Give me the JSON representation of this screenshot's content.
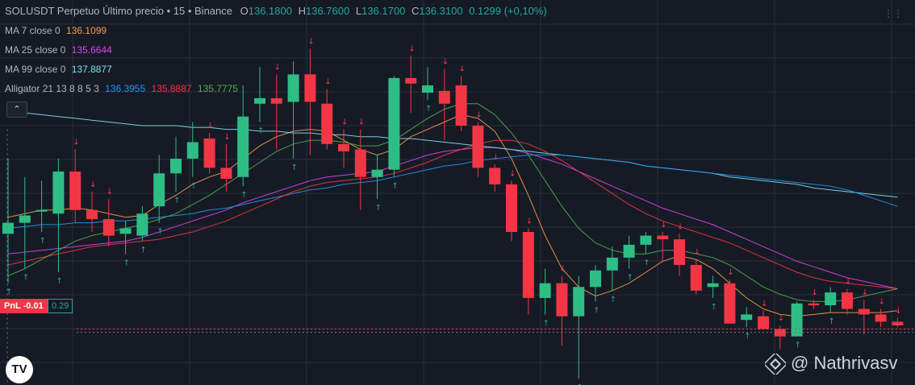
{
  "header": {
    "symbol": "SOLUSDT Perpetuo Último precio • 15 • Binance",
    "o_label": "O",
    "o_value": "136.1800",
    "h_label": "H",
    "h_value": "136.7600",
    "l_label": "L",
    "l_value": "136.1700",
    "c_label": "C",
    "c_value": "136.3100",
    "change": "0.1299 (+0,10%)"
  },
  "indicators": {
    "ma7": {
      "label": "MA 7 close 0",
      "value": "136.1099",
      "color": "#f0a04b"
    },
    "ma25": {
      "label": "MA 25 close 0",
      "value": "135.6644",
      "color": "#d946ef"
    },
    "ma99": {
      "label": "MA 99 close 0",
      "value": "137.8877",
      "color": "#7fe3f0"
    },
    "alligator": {
      "label": "Alligator 21 13 8 8 5 3",
      "jaw": "136.3955",
      "teeth": "135.8887",
      "lips": "135.7775",
      "jaw_color": "#2196f3",
      "teeth_color": "#f23645",
      "lips_color": "#4caf50"
    }
  },
  "pnl": {
    "label": "PnL -0.01",
    "value": "0.29"
  },
  "watermark": "@ Nathrivasv",
  "logo": "TV",
  "colors": {
    "up": "#26a69a",
    "up_body": "#2ebd85",
    "down": "#f23645",
    "background": "#161a25",
    "grid": "#2a2e39"
  },
  "chart_data": {
    "type": "candlestick",
    "y_axis_shown": false,
    "candles": [
      {
        "o": 135.99,
        "h": 136.4,
        "l": 135.72,
        "c": 136.05
      },
      {
        "o": 136.05,
        "h": 136.3,
        "l": 135.8,
        "c": 136.09
      },
      {
        "o": 136.12,
        "h": 136.28,
        "l": 136.0,
        "c": 136.12
      },
      {
        "o": 136.1,
        "h": 136.4,
        "l": 135.78,
        "c": 136.33
      },
      {
        "o": 136.33,
        "h": 136.45,
        "l": 136.05,
        "c": 136.12
      },
      {
        "o": 136.12,
        "h": 136.22,
        "l": 136.0,
        "c": 136.07
      },
      {
        "o": 136.07,
        "h": 136.18,
        "l": 135.92,
        "c": 135.98
      },
      {
        "o": 135.99,
        "h": 136.06,
        "l": 135.88,
        "c": 136.02
      },
      {
        "o": 135.98,
        "h": 136.14,
        "l": 135.95,
        "c": 136.1
      },
      {
        "o": 136.14,
        "h": 136.42,
        "l": 136.05,
        "c": 136.32
      },
      {
        "o": 136.32,
        "h": 136.52,
        "l": 136.22,
        "c": 136.4
      },
      {
        "o": 136.4,
        "h": 136.6,
        "l": 136.3,
        "c": 136.49
      },
      {
        "o": 136.51,
        "h": 136.54,
        "l": 136.32,
        "c": 136.35
      },
      {
        "o": 136.35,
        "h": 136.48,
        "l": 136.22,
        "c": 136.29
      },
      {
        "o": 136.3,
        "h": 136.8,
        "l": 136.25,
        "c": 136.63
      },
      {
        "o": 136.7,
        "h": 136.9,
        "l": 136.6,
        "c": 136.73
      },
      {
        "o": 136.73,
        "h": 136.86,
        "l": 136.45,
        "c": 136.7
      },
      {
        "o": 136.71,
        "h": 136.93,
        "l": 136.4,
        "c": 136.86
      },
      {
        "o": 136.86,
        "h": 137.0,
        "l": 136.42,
        "c": 136.71
      },
      {
        "o": 136.7,
        "h": 136.78,
        "l": 136.45,
        "c": 136.48
      },
      {
        "o": 136.48,
        "h": 136.56,
        "l": 136.35,
        "c": 136.44
      },
      {
        "o": 136.45,
        "h": 136.56,
        "l": 136.12,
        "c": 136.3
      },
      {
        "o": 136.3,
        "h": 136.42,
        "l": 136.18,
        "c": 136.34
      },
      {
        "o": 136.34,
        "h": 136.85,
        "l": 136.3,
        "c": 136.84
      },
      {
        "o": 136.84,
        "h": 136.96,
        "l": 136.65,
        "c": 136.81
      },
      {
        "o": 136.76,
        "h": 136.9,
        "l": 136.72,
        "c": 136.8
      },
      {
        "o": 136.77,
        "h": 136.89,
        "l": 136.5,
        "c": 136.7
      },
      {
        "o": 136.8,
        "h": 136.85,
        "l": 136.55,
        "c": 136.58
      },
      {
        "o": 136.58,
        "h": 136.6,
        "l": 136.3,
        "c": 136.35
      },
      {
        "o": 136.35,
        "h": 136.37,
        "l": 136.22,
        "c": 136.26
      },
      {
        "o": 136.26,
        "h": 136.28,
        "l": 135.95,
        "c": 136.0
      },
      {
        "o": 136.0,
        "h": 136.02,
        "l": 135.55,
        "c": 135.64
      },
      {
        "o": 135.64,
        "h": 135.8,
        "l": 135.55,
        "c": 135.72
      },
      {
        "o": 135.72,
        "h": 135.76,
        "l": 135.38,
        "c": 135.54
      },
      {
        "o": 135.54,
        "h": 135.76,
        "l": 135.2,
        "c": 135.7
      },
      {
        "o": 135.7,
        "h": 135.82,
        "l": 135.62,
        "c": 135.79
      },
      {
        "o": 135.79,
        "h": 135.92,
        "l": 135.68,
        "c": 135.86
      },
      {
        "o": 135.86,
        "h": 135.98,
        "l": 135.8,
        "c": 135.93
      },
      {
        "o": 135.93,
        "h": 136.0,
        "l": 135.88,
        "c": 135.98
      },
      {
        "o": 135.98,
        "h": 136.0,
        "l": 135.84,
        "c": 135.96
      },
      {
        "o": 135.96,
        "h": 135.99,
        "l": 135.76,
        "c": 135.82
      },
      {
        "o": 135.82,
        "h": 135.85,
        "l": 135.66,
        "c": 135.68
      },
      {
        "o": 135.7,
        "h": 135.76,
        "l": 135.64,
        "c": 135.72
      },
      {
        "o": 135.72,
        "h": 135.74,
        "l": 135.5,
        "c": 135.5
      },
      {
        "o": 135.52,
        "h": 135.59,
        "l": 135.48,
        "c": 135.55
      },
      {
        "o": 135.54,
        "h": 135.57,
        "l": 135.47,
        "c": 135.47
      },
      {
        "o": 135.47,
        "h": 135.49,
        "l": 135.36,
        "c": 135.43
      },
      {
        "o": 135.43,
        "h": 135.62,
        "l": 135.43,
        "c": 135.61
      },
      {
        "o": 135.61,
        "h": 135.63,
        "l": 135.58,
        "c": 135.6
      },
      {
        "o": 135.6,
        "h": 135.7,
        "l": 135.56,
        "c": 135.67
      },
      {
        "o": 135.67,
        "h": 135.69,
        "l": 135.55,
        "c": 135.58
      },
      {
        "o": 135.58,
        "h": 135.63,
        "l": 135.44,
        "c": 135.55
      },
      {
        "o": 135.55,
        "h": 135.58,
        "l": 135.48,
        "c": 135.51
      },
      {
        "o": 135.51,
        "h": 135.53,
        "l": 135.48,
        "c": 135.49
      }
    ],
    "series": [
      {
        "name": "MA 7 close 0",
        "values": [
          136.08,
          136.1,
          136.12,
          136.12,
          136.13,
          136.12,
          136.1,
          136.08,
          136.09,
          136.15,
          136.2,
          136.26,
          136.3,
          136.33,
          136.4,
          136.47,
          136.52,
          136.55,
          136.56,
          136.55,
          136.5,
          136.45,
          136.42,
          136.45,
          136.52,
          136.56,
          136.6,
          136.64,
          136.62,
          136.55,
          136.4,
          136.2,
          135.98,
          135.8,
          135.7,
          135.65,
          135.68,
          135.72,
          135.78,
          135.84,
          135.87,
          135.85,
          135.8,
          135.72,
          135.64,
          135.58,
          135.55,
          135.54,
          135.55,
          135.56,
          135.56,
          135.56,
          135.56,
          135.57
        ]
      },
      {
        "name": "MA 25 close 0",
        "values": [
          135.88,
          135.89,
          135.9,
          135.91,
          135.92,
          135.93,
          135.94,
          135.95,
          135.97,
          136.0,
          136.03,
          136.06,
          136.09,
          136.12,
          136.16,
          136.19,
          136.22,
          136.25,
          136.28,
          136.3,
          136.31,
          136.32,
          136.33,
          136.36,
          136.39,
          136.42,
          136.44,
          136.45,
          136.46,
          136.46,
          136.45,
          136.43,
          136.4,
          136.37,
          136.33,
          136.29,
          136.25,
          136.21,
          136.17,
          136.13,
          136.1,
          136.07,
          136.04,
          136.0,
          135.96,
          135.92,
          135.88,
          135.84,
          135.81,
          135.78,
          135.75,
          135.73,
          135.71,
          135.69
        ]
      },
      {
        "name": "MA 99 close 0",
        "values": [
          136.66,
          136.65,
          136.64,
          136.63,
          136.62,
          136.61,
          136.6,
          136.59,
          136.58,
          136.58,
          136.58,
          136.57,
          136.57,
          136.56,
          136.56,
          136.55,
          136.55,
          136.54,
          136.54,
          136.53,
          136.53,
          136.52,
          136.52,
          136.51,
          136.51,
          136.5,
          136.49,
          136.48,
          136.47,
          136.46,
          136.45,
          136.44,
          136.43,
          136.42,
          136.41,
          136.4,
          136.39,
          136.38,
          136.36,
          136.35,
          136.34,
          136.33,
          136.32,
          136.3,
          136.29,
          136.28,
          136.27,
          136.26,
          136.24,
          136.23,
          136.22,
          136.21,
          136.2,
          136.19
        ]
      },
      {
        "name": "Alligator Jaw",
        "values": [
          136.02,
          136.03,
          136.04,
          136.04,
          136.05,
          136.05,
          136.06,
          136.06,
          136.07,
          136.08,
          136.09,
          136.1,
          136.12,
          136.13,
          136.15,
          136.17,
          136.19,
          136.21,
          136.23,
          136.24,
          136.26,
          136.27,
          136.28,
          136.3,
          136.32,
          136.34,
          136.36,
          136.37,
          136.39,
          136.4,
          136.41,
          136.42,
          136.42,
          136.42,
          136.41,
          136.4,
          136.39,
          136.38,
          136.36,
          136.35,
          136.34,
          136.33,
          136.32,
          136.31,
          136.3,
          136.29,
          136.28,
          136.27,
          136.26,
          136.25,
          136.23,
          136.2,
          136.17,
          136.14
        ]
      },
      {
        "name": "Alligator Teeth",
        "values": [
          135.82,
          135.84,
          135.86,
          135.88,
          135.9,
          135.92,
          135.93,
          135.94,
          135.95,
          135.96,
          135.98,
          136.0,
          136.03,
          136.06,
          136.1,
          136.14,
          136.18,
          136.22,
          136.25,
          136.27,
          136.28,
          136.29,
          136.3,
          136.32,
          136.35,
          136.38,
          136.42,
          136.45,
          136.48,
          136.5,
          136.5,
          136.48,
          136.44,
          136.39,
          136.33,
          136.27,
          136.21,
          136.15,
          136.1,
          136.06,
          136.03,
          136.0,
          135.97,
          135.94,
          135.9,
          135.86,
          135.82,
          135.78,
          135.75,
          135.73,
          135.72,
          135.71,
          135.7,
          135.69
        ]
      },
      {
        "name": "Alligator Lips",
        "values": [
          135.76,
          135.8,
          135.85,
          135.9,
          135.95,
          135.98,
          136.0,
          136.02,
          136.04,
          136.07,
          136.1,
          136.15,
          136.2,
          136.26,
          136.32,
          136.38,
          136.44,
          136.48,
          136.5,
          136.5,
          136.49,
          136.47,
          136.47,
          136.5,
          136.56,
          136.62,
          136.67,
          136.7,
          136.7,
          136.64,
          136.54,
          136.42,
          136.28,
          136.14,
          136.02,
          135.94,
          135.9,
          135.88,
          135.88,
          135.9,
          135.9,
          135.88,
          135.86,
          135.82,
          135.76,
          135.7,
          135.66,
          135.63,
          135.62,
          135.62,
          135.63,
          135.65,
          135.67,
          135.69
        ]
      }
    ],
    "y_range": [
      135.2,
      137.2
    ],
    "pnl_line_price": 135.47,
    "grid": true
  }
}
